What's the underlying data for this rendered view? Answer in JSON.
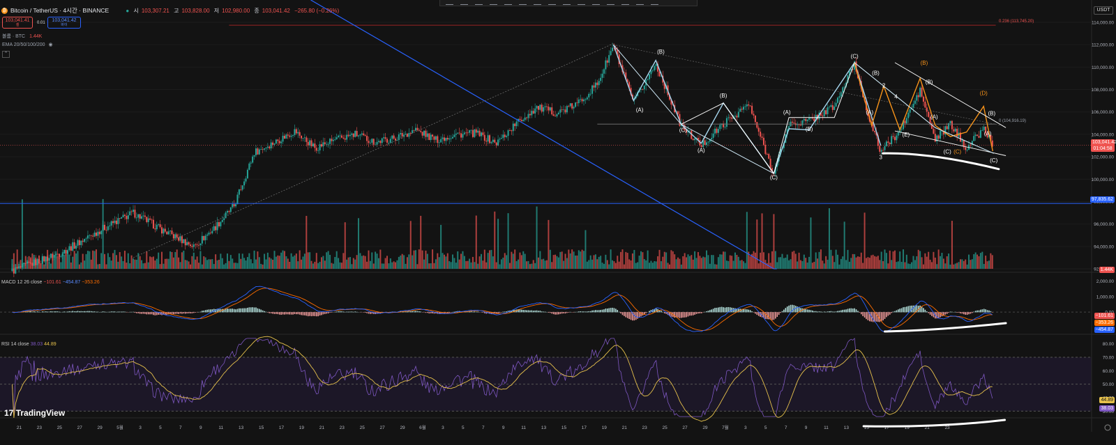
{
  "header": {
    "symbol": "Bitcoin / TetherUS · 4시간 · BINANCE",
    "o_label": "시",
    "o_value": "103,307.21",
    "h_label": "고",
    "h_value": "103,828.00",
    "l_label": "저",
    "l_value": "102,980.00",
    "c_label": "종",
    "c_value": "103,041.42",
    "change": "−265.80 (−0.26%)",
    "sell_price": "103,041.41",
    "sell_label": "셀",
    "spread": "0.01",
    "buy_price": "103,041.42",
    "buy_label": "바이",
    "volume_label": "볼륨 · BTC",
    "volume_value": "1.44K",
    "ema_label": "EMA 20/50/100/200",
    "currency": "USDT",
    "brand": "TradingView"
  },
  "colors": {
    "up": "#26a69a",
    "down": "#ef5350",
    "blue_line": "#2962ff",
    "macd": "#2962ff",
    "signal": "#ff6d00",
    "rsi": "#7e57c2",
    "rsi_ma": "#e7c24c",
    "orange_wave": "#f7931a"
  },
  "chart_data": [
    {
      "type": "candlestick",
      "title": "Bitcoin / TetherUS · 4시간 · BINANCE",
      "y_axis_ticks": [
        "114,000.00",
        "112,000.00",
        "110,000.00",
        "108,000.00",
        "106,000.00",
        "104,000.00",
        "102,000.00",
        "100,000.00",
        "98,000.00",
        "96,000.00",
        "94,000.00",
        "92,000.00"
      ],
      "ylim": [
        91500,
        115000
      ],
      "x_ticks": [
        "21",
        "23",
        "25",
        "27",
        "29",
        "5월",
        "3",
        "5",
        "7",
        "9",
        "11",
        "13",
        "15",
        "17",
        "19",
        "21",
        "23",
        "25",
        "27",
        "29",
        "6월",
        "3",
        "5",
        "7",
        "9",
        "11",
        "13",
        "15",
        "17",
        "19",
        "21",
        "23",
        "25",
        "27",
        "29",
        "7월",
        "3",
        "5",
        "7",
        "9",
        "11",
        "13",
        "15",
        "17",
        "19",
        "21",
        "23"
      ],
      "price_path": [
        {
          "d": 0,
          "v": 91800
        },
        {
          "d": 5,
          "v": 93500
        },
        {
          "d": 9,
          "v": 95600
        },
        {
          "d": 12,
          "v": 97000
        },
        {
          "d": 15,
          "v": 95400
        },
        {
          "d": 18,
          "v": 94000
        },
        {
          "d": 20,
          "v": 95600
        },
        {
          "d": 22,
          "v": 97600
        },
        {
          "d": 24,
          "v": 102400
        },
        {
          "d": 26,
          "v": 103300
        },
        {
          "d": 28,
          "v": 104300
        },
        {
          "d": 30,
          "v": 102800
        },
        {
          "d": 32,
          "v": 103500
        },
        {
          "d": 34,
          "v": 104000
        },
        {
          "d": 36,
          "v": 103300
        },
        {
          "d": 38,
          "v": 103700
        },
        {
          "d": 40,
          "v": 104400
        },
        {
          "d": 42,
          "v": 103500
        },
        {
          "d": 44,
          "v": 104000
        },
        {
          "d": 46,
          "v": 104100
        },
        {
          "d": 48,
          "v": 103200
        },
        {
          "d": 50,
          "v": 105000
        },
        {
          "d": 52,
          "v": 106400
        },
        {
          "d": 54,
          "v": 105900
        },
        {
          "d": 56,
          "v": 106700
        },
        {
          "d": 58,
          "v": 108500
        },
        {
          "d": 59.6,
          "v": 111900
        },
        {
          "d": 61.6,
          "v": 106800
        },
        {
          "d": 63.8,
          "v": 110300
        },
        {
          "d": 66.3,
          "v": 104800
        },
        {
          "d": 68.3,
          "v": 103000
        },
        {
          "d": 70.5,
          "v": 104900
        },
        {
          "d": 73,
          "v": 106700
        },
        {
          "d": 75.5,
          "v": 100500
        },
        {
          "d": 77,
          "v": 104900
        },
        {
          "d": 79,
          "v": 105200
        },
        {
          "d": 81.5,
          "v": 106500
        },
        {
          "d": 83.5,
          "v": 110300
        },
        {
          "d": 85.2,
          "v": 104700
        },
        {
          "d": 86.1,
          "v": 102500
        },
        {
          "d": 88,
          "v": 104300
        },
        {
          "d": 90,
          "v": 107900
        },
        {
          "d": 91.5,
          "v": 103500
        },
        {
          "d": 93,
          "v": 104900
        },
        {
          "d": 94.6,
          "v": 102800
        },
        {
          "d": 96.3,
          "v": 104500
        },
        {
          "d": 97.3,
          "v": 103041
        }
      ],
      "last_price": "103,041.42",
      "countdown": "01:04:58",
      "horizontal_level": "97,835.62",
      "fib_label": "0.236 (113,745.20)",
      "fib_value": 113745.2,
      "zero_label": "0 (104,916.19)",
      "zero_value": 104916.19,
      "volume_tag": "1.44K",
      "wave_labels": [
        {
          "t": "(A)",
          "d": 62.2,
          "v": 106000
        },
        {
          "t": "(B)",
          "d": 64.3,
          "v": 111200
        },
        {
          "t": "(C)",
          "d": 66.5,
          "v": 104200
        },
        {
          "t": "(A)",
          "d": 68.3,
          "v": 102400
        },
        {
          "t": "(B)",
          "d": 70.5,
          "v": 107300
        },
        {
          "t": "(C)",
          "d": 75.5,
          "v": 100000
        },
        {
          "t": "(A)",
          "d": 76.8,
          "v": 105800
        },
        {
          "t": "(B)",
          "d": 79,
          "v": 104300
        },
        {
          "t": "(C)",
          "d": 83.5,
          "v": 110800
        },
        {
          "t": "(A)",
          "d": 85,
          "v": 105800
        },
        {
          "t": "(B)",
          "d": 85.6,
          "v": 109300
        },
        {
          "t": "2",
          "d": 86.4,
          "v": 108200
        },
        {
          "t": "4",
          "d": 87.6,
          "v": 107200
        },
        {
          "t": "(E)",
          "d": 88.6,
          "v": 103800
        },
        {
          "t": "3",
          "d": 86.1,
          "v": 101800
        },
        {
          "t": "(B)",
          "d": 90.4,
          "v": 110200
        },
        {
          "t": "(B)",
          "d": 90.9,
          "v": 108500
        },
        {
          "t": "(A)",
          "d": 91.4,
          "v": 105400
        },
        {
          "t": "(C)",
          "d": 92.7,
          "v": 102300
        },
        {
          "t": "(C)",
          "d": 93.7,
          "v": 102300
        },
        {
          "t": "(D)",
          "d": 96.3,
          "v": 107500
        },
        {
          "t": "(B)",
          "d": 97.1,
          "v": 105700
        },
        {
          "t": "(A)",
          "d": 96.7,
          "v": 103900
        },
        {
          "t": "(C)",
          "d": 97.3,
          "v": 101500
        }
      ]
    },
    {
      "type": "line",
      "title": "MACD 12 26 close",
      "series": [
        {
          "name": "MACD",
          "last": "−454.87"
        },
        {
          "name": "Signal",
          "last": "−353.26"
        },
        {
          "name": "Histogram",
          "last": "−101.61"
        }
      ],
      "y_axis_ticks": [
        "2,000.00",
        "1,000.00",
        "0.00"
      ],
      "ylim": [
        -1300,
        2300
      ]
    },
    {
      "type": "line",
      "title": "RSI 14 close",
      "series": [
        {
          "name": "RSI",
          "last": "38.03"
        },
        {
          "name": "RSI-based MA",
          "last": "44.89"
        }
      ],
      "y_axis_ticks": [
        "80.00",
        "70.00",
        "60.00",
        "50.00",
        "40.00",
        "30.00"
      ],
      "ylim": [
        25,
        85
      ],
      "levels": [
        70,
        50,
        30
      ]
    }
  ]
}
